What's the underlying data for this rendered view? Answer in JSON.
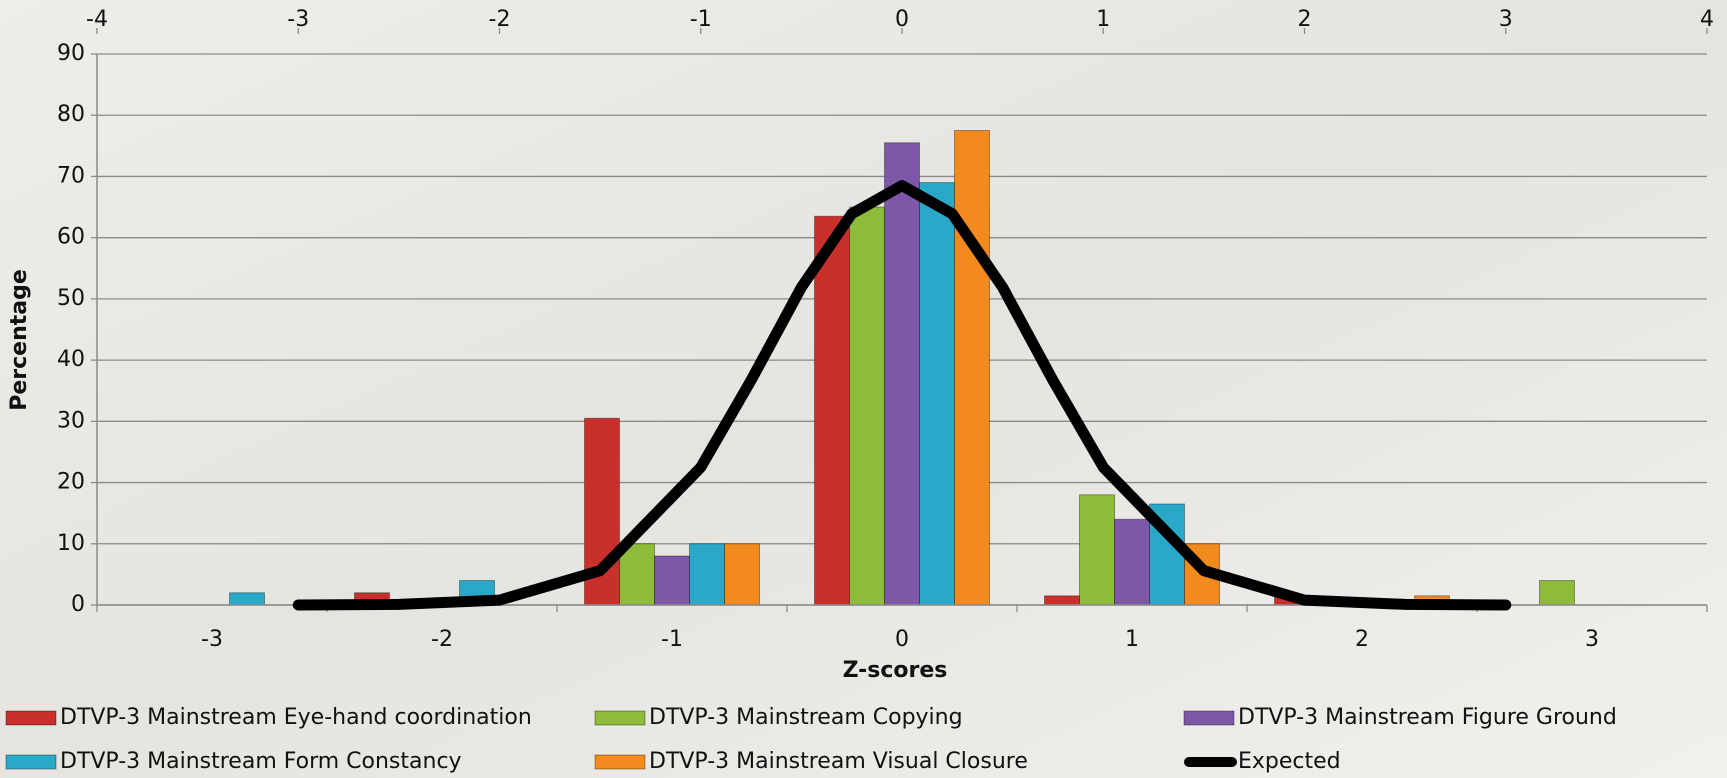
{
  "chart_data": {
    "type": "bar",
    "x_label": "Z-scores",
    "y_label": "Percentage",
    "categories": [
      "-3",
      "-2",
      "-1",
      "0",
      "1",
      "2",
      "3"
    ],
    "series": [
      {
        "name": "DTVP-3 Mainstream Eye-hand coordination",
        "color": "#c9302c",
        "values": [
          0,
          2,
          30.5,
          63.5,
          1.5,
          1.5,
          0
        ]
      },
      {
        "name": "DTVP-3 Mainstream Copying",
        "color": "#8dbb3a",
        "values": [
          0,
          0,
          10,
          65,
          18,
          0,
          4
        ]
      },
      {
        "name": "DTVP-3 Mainstream Figure Ground",
        "color": "#7e57a8",
        "values": [
          0,
          0,
          8,
          75.5,
          14,
          0,
          0
        ]
      },
      {
        "name": "DTVP-3 Mainstream Form Constancy",
        "color": "#2aa8c8",
        "values": [
          2,
          4,
          10,
          69,
          16.5,
          0,
          0
        ]
      },
      {
        "name": "DTVP-3 Mainstream Visual Closure",
        "color": "#f28a1e",
        "values": [
          0,
          0,
          10,
          77.5,
          10,
          1.5,
          0
        ]
      }
    ],
    "line": {
      "name": "Expected",
      "color": "#000000",
      "x": [
        -3,
        -2.5,
        -2,
        -1.5,
        -1,
        -0.75,
        -0.5,
        -0.25,
        0,
        0.25,
        0.5,
        0.75,
        1,
        1.5,
        2,
        2.5,
        3
      ],
      "values": [
        0,
        0.1,
        0.8,
        5.6,
        22.5,
        36.7,
        51.9,
        63.9,
        68.5,
        63.9,
        51.9,
        36.7,
        22.5,
        5.6,
        0.8,
        0.1,
        0
      ]
    },
    "ylim": [
      0,
      90
    ],
    "yticks": [
      0,
      10,
      20,
      30,
      40,
      50,
      60,
      70,
      80,
      90
    ],
    "x2lim": [
      -4,
      4
    ],
    "x2ticks": [
      -4,
      -3,
      -2,
      -1,
      0,
      1,
      2,
      3,
      4
    ],
    "grid": true
  }
}
